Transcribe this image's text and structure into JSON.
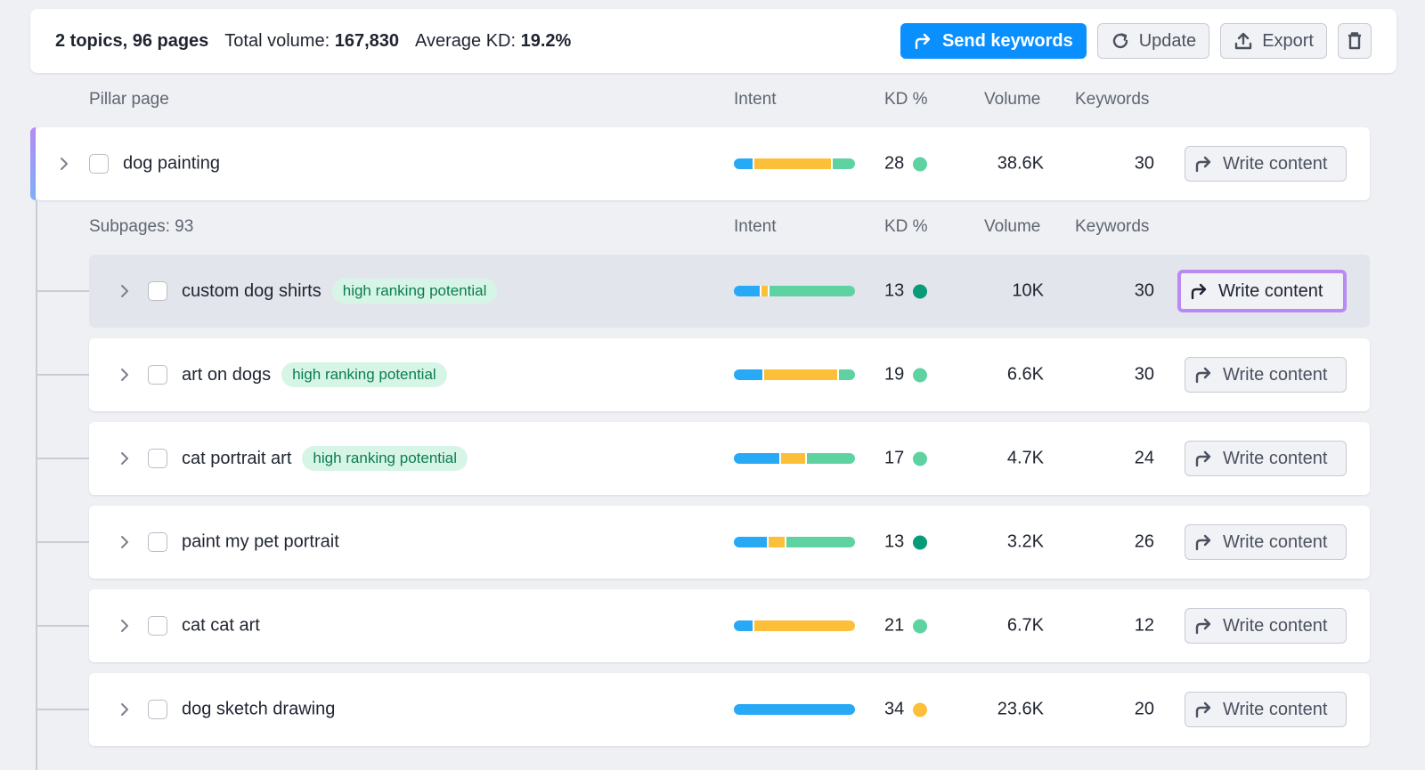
{
  "summary": {
    "topics_pages": "2 topics, 96 pages",
    "volume_label": "Total volume:",
    "volume_value": "167,830",
    "kd_label": "Average KD:",
    "kd_value": "19.2%"
  },
  "toolbar": {
    "send_label": "Send keywords",
    "update_label": "Update",
    "export_label": "Export"
  },
  "headers": {
    "pillar": "Pillar page",
    "intent": "Intent",
    "kd": "KD %",
    "volume": "Volume",
    "keywords": "Keywords"
  },
  "subheaders": {
    "subpages": "Subpages: 93",
    "intent": "Intent",
    "kd": "KD %",
    "volume": "Volume",
    "keywords": "Keywords"
  },
  "colors": {
    "informational": "#28a9f5",
    "commercial": "#fbbf3a",
    "transactional": "#5ed3a1",
    "kd_easy": "#5ed3a1",
    "kd_very_easy": "#079b77",
    "kd_possible": "#fbbf3a"
  },
  "pillar": {
    "title": "dog painting",
    "intent": [
      0.16,
      0.65,
      0.19
    ],
    "kd": "28",
    "kd_color": "#5ed3a1",
    "volume": "38.6K",
    "keywords": "30",
    "action": "Write content"
  },
  "subpages": [
    {
      "title": "custom dog shirts",
      "tag": "high ranking potential",
      "intent": [
        0.22,
        0.05,
        0.73
      ],
      "kd": "13",
      "kd_color": "#079b77",
      "volume": "10K",
      "keywords": "30",
      "action": "Write content"
    },
    {
      "title": "art on dogs",
      "tag": "high ranking potential",
      "intent": [
        0.24,
        0.62,
        0.14
      ],
      "kd": "19",
      "kd_color": "#5ed3a1",
      "volume": "6.6K",
      "keywords": "30",
      "action": "Write content"
    },
    {
      "title": "cat portrait art",
      "tag": "high ranking potential",
      "intent": [
        0.39,
        0.2,
        0.41
      ],
      "kd": "17",
      "kd_color": "#5ed3a1",
      "volume": "4.7K",
      "keywords": "24",
      "action": "Write content"
    },
    {
      "title": "paint my pet portrait",
      "tag": "",
      "intent": [
        0.28,
        0.14,
        0.58
      ],
      "kd": "13",
      "kd_color": "#079b77",
      "volume": "3.2K",
      "keywords": "26",
      "action": "Write content"
    },
    {
      "title": "cat cat art",
      "tag": "",
      "intent": [
        0.16,
        0.84,
        0.0
      ],
      "kd": "21",
      "kd_color": "#5ed3a1",
      "volume": "6.7K",
      "keywords": "12",
      "action": "Write content"
    },
    {
      "title": "dog sketch drawing",
      "tag": "",
      "intent": [
        1.0,
        0.0,
        0.0
      ],
      "kd": "34",
      "kd_color": "#fbbf3a",
      "volume": "23.6K",
      "keywords": "20",
      "action": "Write content"
    }
  ]
}
